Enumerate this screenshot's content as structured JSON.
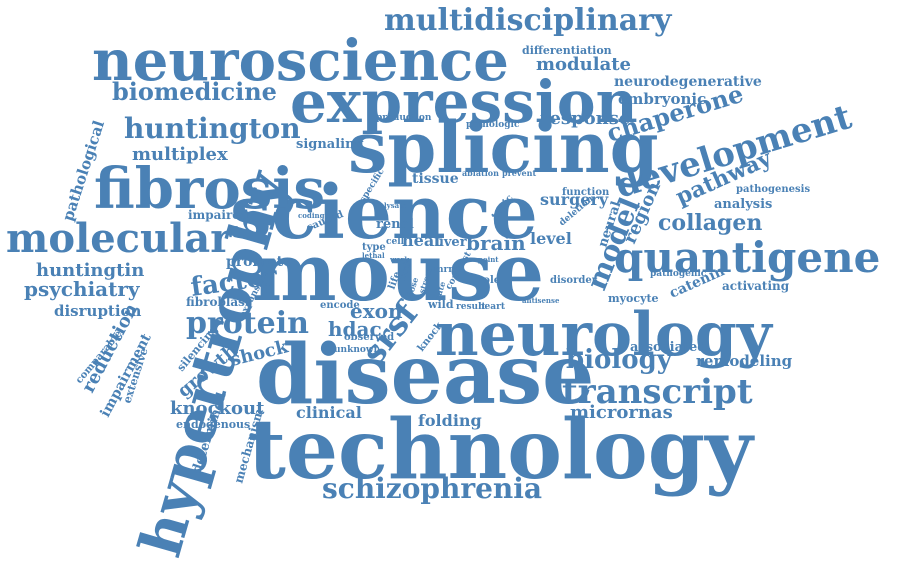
{
  "color": "#4a81b5",
  "words": [
    {
      "text": "mouse"
    },
    {
      "text": "disease"
    },
    {
      "text": "technology"
    },
    {
      "text": "science"
    },
    {
      "text": "neurology"
    },
    {
      "text": "splicing"
    },
    {
      "text": "neuroscience"
    },
    {
      "text": "expression"
    },
    {
      "text": "fibrosis"
    },
    {
      "text": "hypertrophy"
    },
    {
      "text": "molecular"
    },
    {
      "text": "quantigene"
    },
    {
      "text": "development"
    },
    {
      "text": "transcript"
    },
    {
      "text": "schizophrenia"
    },
    {
      "text": "multidisciplinary"
    },
    {
      "text": "huntington"
    },
    {
      "text": "biomedicine"
    },
    {
      "text": "protein"
    },
    {
      "text": "model"
    },
    {
      "text": "srsf"
    },
    {
      "text": "biology"
    },
    {
      "text": "factor"
    },
    {
      "text": "chaperone"
    },
    {
      "text": "pathway"
    },
    {
      "text": "collagen"
    },
    {
      "text": "psychiatry"
    },
    {
      "text": "huntingtin"
    },
    {
      "text": "multiplex"
    },
    {
      "text": "modulate"
    },
    {
      "text": "response"
    },
    {
      "text": "micrornas"
    },
    {
      "text": "knockout"
    },
    {
      "text": "growth"
    },
    {
      "text": "reduction"
    },
    {
      "text": "region"
    },
    {
      "text": "exon"
    },
    {
      "text": "hdac"
    },
    {
      "text": "brain"
    },
    {
      "text": "shock"
    },
    {
      "text": "surgery"
    },
    {
      "text": "remodeling"
    },
    {
      "text": "neurodegenerative"
    },
    {
      "text": "embryonic"
    },
    {
      "text": "pathological"
    },
    {
      "text": "clinical"
    },
    {
      "text": "folding"
    },
    {
      "text": "disruption"
    },
    {
      "text": "associated"
    },
    {
      "text": "analysis"
    },
    {
      "text": "catenin"
    },
    {
      "text": "level"
    },
    {
      "text": "heat"
    },
    {
      "text": "impairment"
    },
    {
      "text": "tissue"
    },
    {
      "text": "determined"
    },
    {
      "text": "signaling"
    },
    {
      "text": "promote"
    },
    {
      "text": "activating"
    },
    {
      "text": "mechanism"
    },
    {
      "text": "differentiation"
    },
    {
      "text": "renal"
    },
    {
      "text": "liver"
    },
    {
      "text": "impaired"
    },
    {
      "text": "fibroblast"
    },
    {
      "text": "silencing"
    },
    {
      "text": "neural"
    },
    {
      "text": "extensive"
    },
    {
      "text": "comparable"
    },
    {
      "text": "endogenous"
    },
    {
      "text": "encode"
    },
    {
      "text": "myocyte"
    },
    {
      "text": "pathogenic"
    },
    {
      "text": "pathogenesis"
    },
    {
      "text": "function"
    },
    {
      "text": "knock"
    },
    {
      "text": "production"
    },
    {
      "text": "pathologic"
    },
    {
      "text": "specific"
    },
    {
      "text": "topic"
    },
    {
      "text": "expansion"
    },
    {
      "text": "caused"
    },
    {
      "text": "cell"
    },
    {
      "text": "type"
    },
    {
      "text": "deletion"
    },
    {
      "text": "observed"
    },
    {
      "text": "unknown"
    },
    {
      "text": "role"
    },
    {
      "text": "disorder"
    },
    {
      "text": "wild"
    },
    {
      "text": "result"
    },
    {
      "text": "heart"
    },
    {
      "text": "ablation"
    },
    {
      "text": "prevent"
    },
    {
      "text": "antisense"
    },
    {
      "text": "lethal"
    },
    {
      "text": "coding"
    },
    {
      "text": "contrast"
    },
    {
      "text": "mrna"
    },
    {
      "text": "life"
    },
    {
      "text": "work"
    },
    {
      "text": "lysate"
    },
    {
      "text": "mrfs"
    },
    {
      "text": "point"
    },
    {
      "text": "stress"
    },
    {
      "text": "dose"
    },
    {
      "text": "rate"
    }
  ]
}
